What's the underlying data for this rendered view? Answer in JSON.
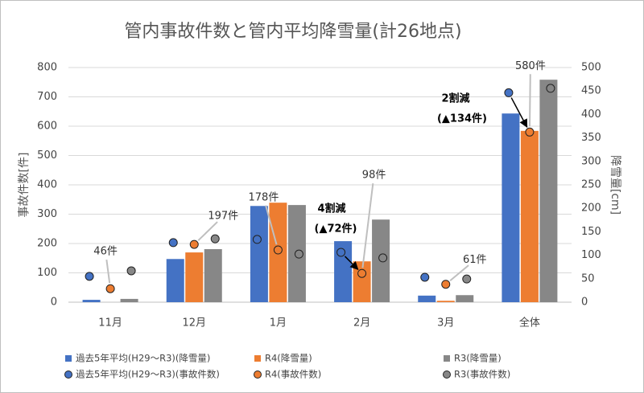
{
  "chart_data": {
    "type": "bar-dot-combo",
    "title": "管内事故件数と管内平均降雪量(計26地点)",
    "y_label": "事故件数[件]",
    "y2_label": "降雪量[cm]",
    "categories": [
      "11月",
      "12月",
      "1月",
      "2月",
      "3月",
      "全体"
    ],
    "ylim": [
      0,
      800
    ],
    "yticks": [
      0,
      100,
      200,
      300,
      400,
      500,
      600,
      700,
      800
    ],
    "y2lim": [
      0,
      500
    ],
    "y2ticks": [
      0,
      50,
      100,
      150,
      200,
      250,
      300,
      350,
      400,
      450,
      500
    ],
    "grid": true,
    "series": [
      {
        "name": "過去5年平均(H29～R3)(降雪量)",
        "color": "#4472c4",
        "kind": "bar",
        "axis": "y2",
        "values": [
          5,
          92,
          205,
          130,
          14,
          402
        ]
      },
      {
        "name": "R4(降雪量)",
        "color": "#ed7d31",
        "kind": "bar",
        "axis": "y2",
        "values": [
          0,
          106,
          212,
          87,
          3,
          365
        ]
      },
      {
        "name": "R3(降雪量)",
        "color": "#878787",
        "kind": "bar",
        "axis": "y2",
        "values": [
          7,
          113,
          207,
          176,
          15,
          474
        ]
      },
      {
        "name": "過去5年平均(H29～R3)(事故件数)",
        "color": "#4472c4",
        "kind": "dot",
        "values": [
          88,
          203,
          214,
          170,
          85,
          714
        ]
      },
      {
        "name": "R4(事故件数)",
        "color": "#ed7d31",
        "kind": "dot",
        "values": [
          46,
          197,
          178,
          98,
          61,
          580
        ],
        "value_labels": [
          "46件",
          "197件",
          "178件",
          "98件",
          "61件",
          "580件"
        ]
      },
      {
        "name": "R3(事故件数)",
        "color": "#878787",
        "kind": "dot",
        "values": [
          107,
          216,
          164,
          151,
          79,
          729
        ]
      }
    ],
    "annotations": [
      "4割減",
      "(▲72件)",
      "2割減",
      "(▲134件)"
    ]
  }
}
